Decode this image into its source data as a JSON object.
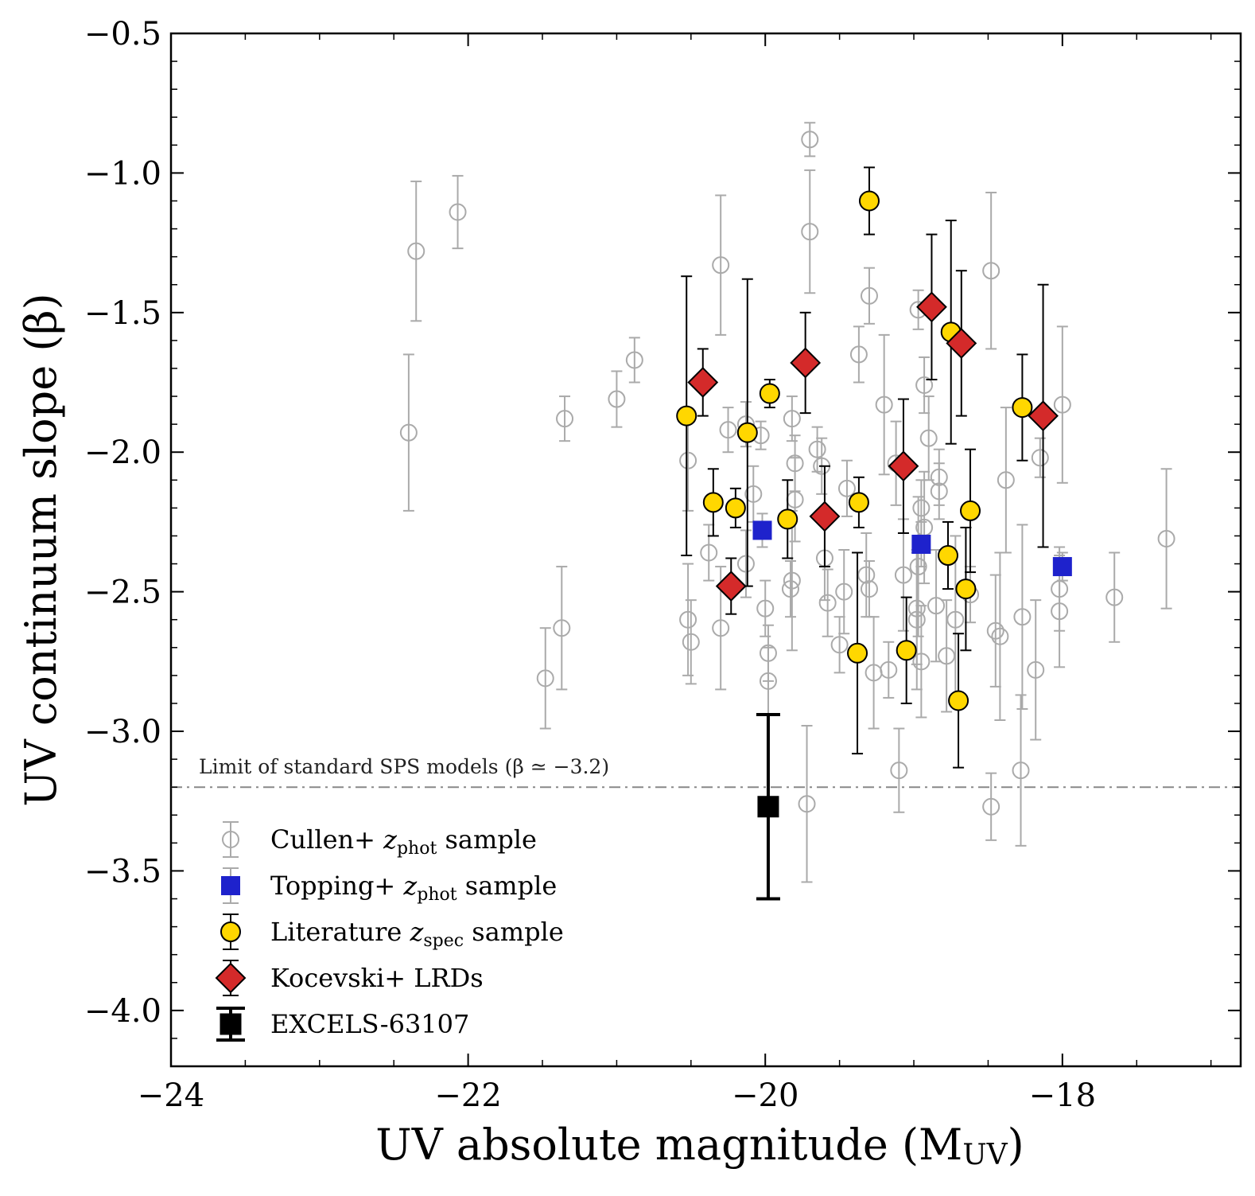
{
  "chart_data": {
    "type": "scatter",
    "xlabel": "UV absolute magnitude (M",
    "xlabel_sub": "UV",
    "xlabel_close": ")",
    "ylabel": "UV continuum slope (β)",
    "xlim": [
      -24,
      -16.8
    ],
    "ylim": [
      -4.2,
      -0.5
    ],
    "x_ticks": [
      -24,
      -22,
      -20,
      -18
    ],
    "x_tick_labels": [
      "−24",
      "−22",
      "−20",
      "−18"
    ],
    "y_ticks": [
      -0.5,
      -1.0,
      -1.5,
      -2.0,
      -2.5,
      -3.0,
      -3.5,
      -4.0
    ],
    "y_tick_labels": [
      "−0.5",
      "−1.0",
      "−1.5",
      "−2.0",
      "−2.5",
      "−3.0",
      "−3.5",
      "−4.0"
    ],
    "grid": false,
    "legend_position": "lower-left",
    "reference_line": {
      "y": -3.2,
      "label": "Limit of standard SPS models (β ≃ −3.2)",
      "color": "#888888"
    },
    "series": [
      {
        "key": "cullen",
        "legend_label": "Cullen+ ",
        "legend_z": "z",
        "legend_sub": "phot",
        "legend_tail": " sample",
        "marker": "open-circle",
        "color": "#aaaaaa",
        "points": [
          [
            -22.4,
            -1.93,
            0.28
          ],
          [
            -22.35,
            -1.28,
            0.25
          ],
          [
            -22.07,
            -1.14,
            0.13
          ],
          [
            -21.48,
            -2.81,
            0.18
          ],
          [
            -21.37,
            -2.63,
            0.22
          ],
          [
            -21.35,
            -1.88,
            0.08
          ],
          [
            -21.0,
            -1.81,
            0.1
          ],
          [
            -20.88,
            -1.67,
            0.08
          ],
          [
            -20.52,
            -2.6,
            0.2
          ],
          [
            -20.52,
            -2.03,
            0.18
          ],
          [
            -20.5,
            -2.68,
            0.15
          ],
          [
            -20.38,
            -2.36,
            0.1
          ],
          [
            -20.3,
            -2.63,
            0.22
          ],
          [
            -20.3,
            -1.33,
            0.25
          ],
          [
            -20.25,
            -1.92,
            0.08
          ],
          [
            -20.13,
            -2.4,
            0.12
          ],
          [
            -20.13,
            -1.9,
            0.08
          ],
          [
            -20.08,
            -2.15,
            0.1
          ],
          [
            -20.03,
            -1.94,
            0.05
          ],
          [
            -20.0,
            -2.56,
            0.1
          ],
          [
            -19.98,
            -2.72,
            0.1
          ],
          [
            -19.98,
            -2.82,
            0.12
          ],
          [
            -19.83,
            -2.49,
            0.1
          ],
          [
            -19.82,
            -2.46,
            0.25
          ],
          [
            -19.82,
            -1.88,
            0.08
          ],
          [
            -19.8,
            -2.04,
            0.1
          ],
          [
            -19.8,
            -2.17,
            0.15
          ],
          [
            -19.72,
            -3.26,
            0.28
          ],
          [
            -19.7,
            -1.21,
            0.22
          ],
          [
            -19.7,
            -0.88,
            0.06
          ],
          [
            -19.65,
            -1.99,
            0.08
          ],
          [
            -19.62,
            -2.05,
            0.1
          ],
          [
            -19.6,
            -2.38,
            0.15
          ],
          [
            -19.58,
            -2.54,
            0.12
          ],
          [
            -19.5,
            -2.69,
            0.1
          ],
          [
            -19.47,
            -2.5,
            0.15
          ],
          [
            -19.45,
            -2.13,
            0.1
          ],
          [
            -19.37,
            -1.65,
            0.1
          ],
          [
            -19.32,
            -2.44,
            0.15
          ],
          [
            -19.3,
            -2.49,
            0.1
          ],
          [
            -19.3,
            -1.44,
            0.1
          ],
          [
            -19.27,
            -2.79,
            0.2
          ],
          [
            -19.2,
            -1.83,
            0.25
          ],
          [
            -19.17,
            -2.78,
            0.1
          ],
          [
            -19.12,
            -2.04,
            0.15
          ],
          [
            -19.1,
            -3.14,
            0.15
          ],
          [
            -19.07,
            -2.44,
            0.2
          ],
          [
            -18.98,
            -2.6,
            0.25
          ],
          [
            -18.98,
            -2.56,
            0.2
          ],
          [
            -18.97,
            -2.41,
            0.25
          ],
          [
            -18.97,
            -1.49,
            0.07
          ],
          [
            -18.95,
            -2.75,
            0.2
          ],
          [
            -18.95,
            -2.2,
            0.1
          ],
          [
            -18.93,
            -2.27,
            0.2
          ],
          [
            -18.93,
            -1.76,
            0.1
          ],
          [
            -18.9,
            -1.95,
            0.15
          ],
          [
            -18.85,
            -2.55,
            0.2
          ],
          [
            -18.83,
            -2.14,
            0.1
          ],
          [
            -18.83,
            -2.09,
            0.1
          ],
          [
            -18.78,
            -2.73,
            0.2
          ],
          [
            -18.72,
            -2.6,
            0.3
          ],
          [
            -18.62,
            -2.51,
            0.1
          ],
          [
            -18.48,
            -3.27,
            0.12
          ],
          [
            -18.48,
            -1.35,
            0.28
          ],
          [
            -18.45,
            -2.64,
            0.2
          ],
          [
            -18.42,
            -2.66,
            0.3
          ],
          [
            -18.38,
            -2.1,
            0.26
          ],
          [
            -18.28,
            -3.14,
            0.27
          ],
          [
            -18.27,
            -2.59,
            0.33
          ],
          [
            -18.18,
            -2.78,
            0.25
          ],
          [
            -18.15,
            -2.02,
            0.07
          ],
          [
            -18.02,
            -2.57,
            0.2
          ],
          [
            -18.02,
            -2.49,
            0.15
          ],
          [
            -18.0,
            -1.83,
            0.28
          ],
          [
            -17.65,
            -2.52,
            0.16
          ],
          [
            -17.3,
            -2.31,
            0.25
          ]
        ]
      },
      {
        "key": "topping",
        "legend_label": "Topping+ ",
        "legend_z": "z",
        "legend_sub": "phot",
        "legend_tail": " sample",
        "marker": "square",
        "color": "#1e22cc",
        "points": [
          [
            -20.02,
            -2.28,
            0.06
          ],
          [
            -18.95,
            -2.33,
            0.08
          ],
          [
            -18.0,
            -2.41,
            0.05
          ]
        ]
      },
      {
        "key": "literature",
        "legend_label": "Literature ",
        "legend_z": "z",
        "legend_sub": "spec",
        "legend_tail": " sample",
        "marker": "circle",
        "color": "#ffd700",
        "points": [
          [
            -20.53,
            -1.87,
            0.5
          ],
          [
            -20.35,
            -2.18,
            0.12
          ],
          [
            -20.2,
            -2.2,
            0.07
          ],
          [
            -20.12,
            -1.93,
            0.55
          ],
          [
            -19.97,
            -1.79,
            0.05
          ],
          [
            -19.85,
            -2.24,
            0.14
          ],
          [
            -19.3,
            -1.1,
            0.12
          ],
          [
            -19.37,
            -2.18,
            0.09
          ],
          [
            -19.38,
            -2.72,
            0.36
          ],
          [
            -19.05,
            -2.71,
            0.19
          ],
          [
            -18.75,
            -1.57,
            0.4
          ],
          [
            -18.77,
            -2.37,
            0.12
          ],
          [
            -18.7,
            -2.89,
            0.24
          ],
          [
            -18.65,
            -2.49,
            0.22
          ],
          [
            -18.62,
            -2.21,
            0.22
          ],
          [
            -18.27,
            -1.84,
            0.19
          ]
        ]
      },
      {
        "key": "kocevski",
        "legend_label": "Kocevski+ LRDs",
        "legend_z": "",
        "legend_sub": "",
        "legend_tail": "",
        "marker": "diamond",
        "color": "#d42a2a",
        "points": [
          [
            -20.42,
            -1.75,
            0.12
          ],
          [
            -20.23,
            -2.48,
            0.1
          ],
          [
            -19.73,
            -1.68,
            0.18
          ],
          [
            -19.6,
            -2.23,
            0.18
          ],
          [
            -19.07,
            -2.05,
            0.24
          ],
          [
            -18.88,
            -1.48,
            0.26
          ],
          [
            -18.68,
            -1.61,
            0.26
          ],
          [
            -18.13,
            -1.87,
            0.47
          ]
        ]
      },
      {
        "key": "excels",
        "legend_label": "EXCELS-63107",
        "legend_z": "",
        "legend_sub": "",
        "legend_tail": "",
        "marker": "square",
        "color": "#000000",
        "points": [
          [
            -19.98,
            -3.27,
            0.33
          ]
        ]
      }
    ]
  }
}
